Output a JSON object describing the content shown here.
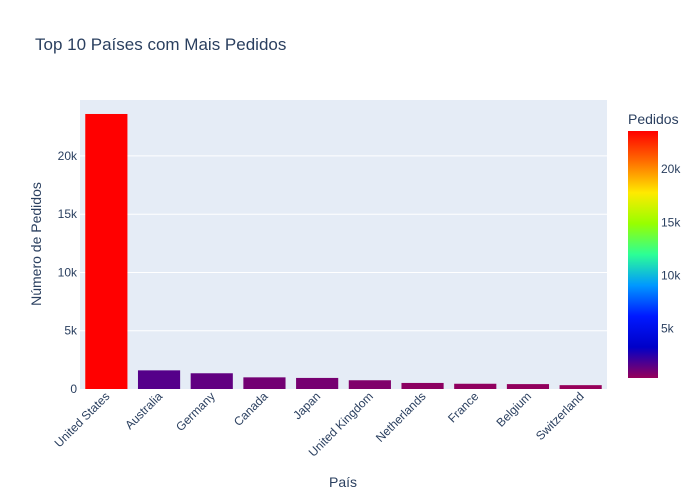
{
  "chart_data": {
    "type": "bar",
    "title": "Top 10 Países com Mais Pedidos",
    "xlabel": "País",
    "ylabel": "Número de Pedidos",
    "categories": [
      "United States",
      "Australia",
      "Germany",
      "Canada",
      "Japan",
      "United Kingdom",
      "Netherlands",
      "France",
      "Belgium",
      "Switzerland"
    ],
    "values": [
      23600,
      1600,
      1350,
      1000,
      950,
      750,
      520,
      450,
      420,
      330
    ],
    "ylim": [
      0,
      24800
    ],
    "yticks": [
      0,
      5000,
      10000,
      15000,
      20000
    ],
    "ytick_labels": [
      "0",
      "5k",
      "10k",
      "15k",
      "20k"
    ],
    "grid": true,
    "colorbar": {
      "title": "Pedidos",
      "range": [
        330,
        23600
      ],
      "ticks": [
        5000,
        10000,
        15000,
        20000
      ],
      "tick_labels": [
        "5k",
        "10k",
        "15k",
        "20k"
      ],
      "colorscale": [
        "#96005a",
        "#0000c8",
        "#0019ff",
        "#0098ff",
        "#2cff96",
        "#97ff00",
        "#ffea00",
        "#ff6f00",
        "#ff0000"
      ]
    }
  }
}
